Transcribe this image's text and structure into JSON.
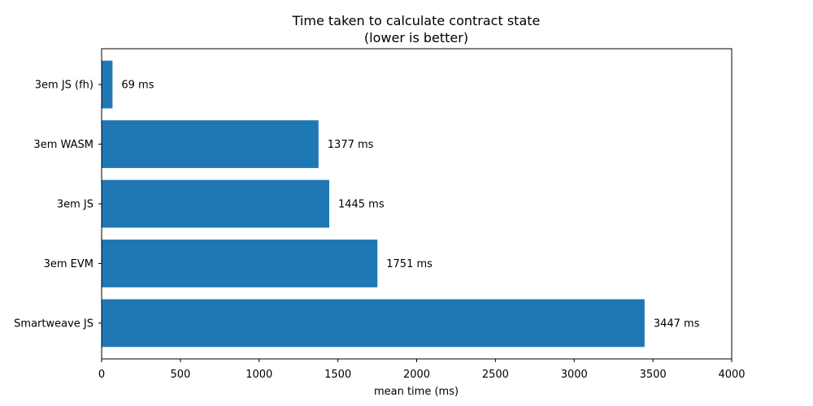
{
  "chart_data": {
    "type": "bar",
    "orientation": "horizontal",
    "title": "Time taken to calculate contract state",
    "subtitle": "(lower is better)",
    "xlabel": "mean time (ms)",
    "ylabel": "",
    "xlim": [
      0,
      4000
    ],
    "xticks": [
      0,
      500,
      1000,
      1500,
      2000,
      2500,
      3000,
      3500,
      4000
    ],
    "categories": [
      "3em JS (fh)",
      "3em WASM",
      "3em JS",
      "3em EVM",
      "Smartweave JS"
    ],
    "values": [
      69,
      1377,
      1445,
      1751,
      3447
    ],
    "value_labels": [
      "69 ms",
      "1377 ms",
      "1445 ms",
      "1751 ms",
      "3447 ms"
    ],
    "grid": false,
    "bar_color": "#1f77b4"
  }
}
